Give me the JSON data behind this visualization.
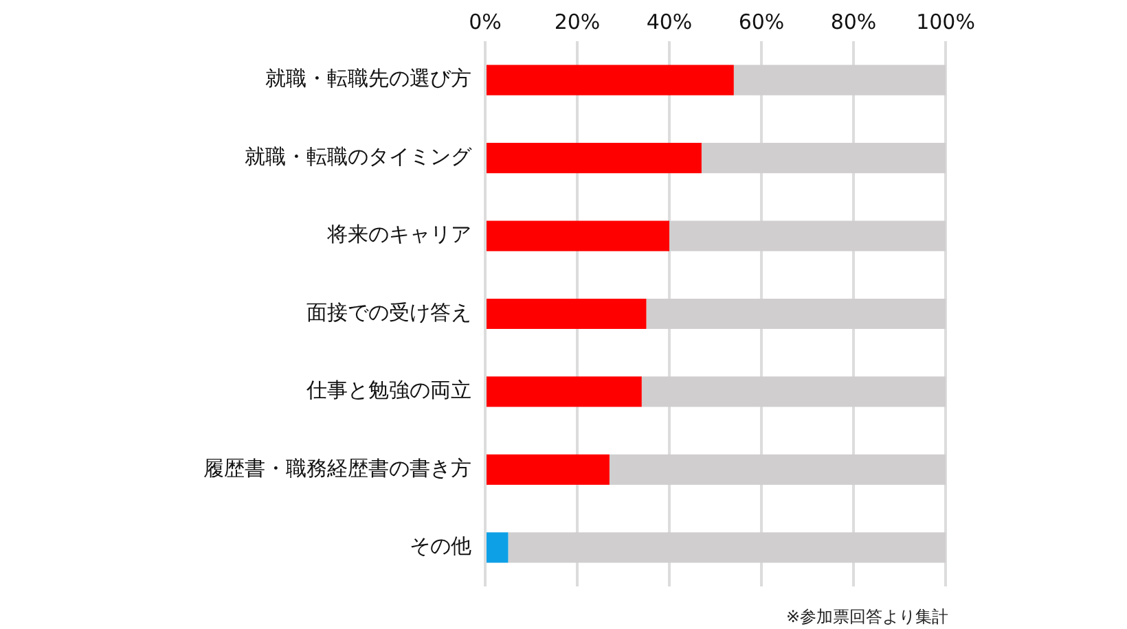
{
  "chart_data": {
    "type": "bar",
    "orientation": "horizontal",
    "stacked": true,
    "categories": [
      "就職・転職先の選び方",
      "就職・転職のタイミング",
      "将来のキャリア",
      "面接での受け答え",
      "仕事と勉強の両立",
      "履歴書・職務経歴書の書き方",
      "その他"
    ],
    "series": [
      {
        "colors": [
          "#ff0000",
          "#ff0000",
          "#ff0000",
          "#ff0000",
          "#ff0000",
          "#ff0000",
          "#0ea0e6"
        ],
        "values": [
          54,
          47,
          40,
          35,
          34,
          27,
          5
        ]
      },
      {
        "color": "#d0cecf",
        "values": [
          46,
          53,
          60,
          65,
          66,
          73,
          95
        ]
      }
    ],
    "xlim": [
      0,
      100
    ],
    "xticks": [
      {
        "value": 0,
        "label": "0%"
      },
      {
        "value": 20,
        "label": "20%"
      },
      {
        "value": 40,
        "label": "40%"
      },
      {
        "value": 60,
        "label": "60%"
      },
      {
        "value": 80,
        "label": "80%"
      },
      {
        "value": 100,
        "label": "100%"
      }
    ],
    "grid": "x",
    "annotations": [
      "※参加票回答より集計"
    ]
  }
}
